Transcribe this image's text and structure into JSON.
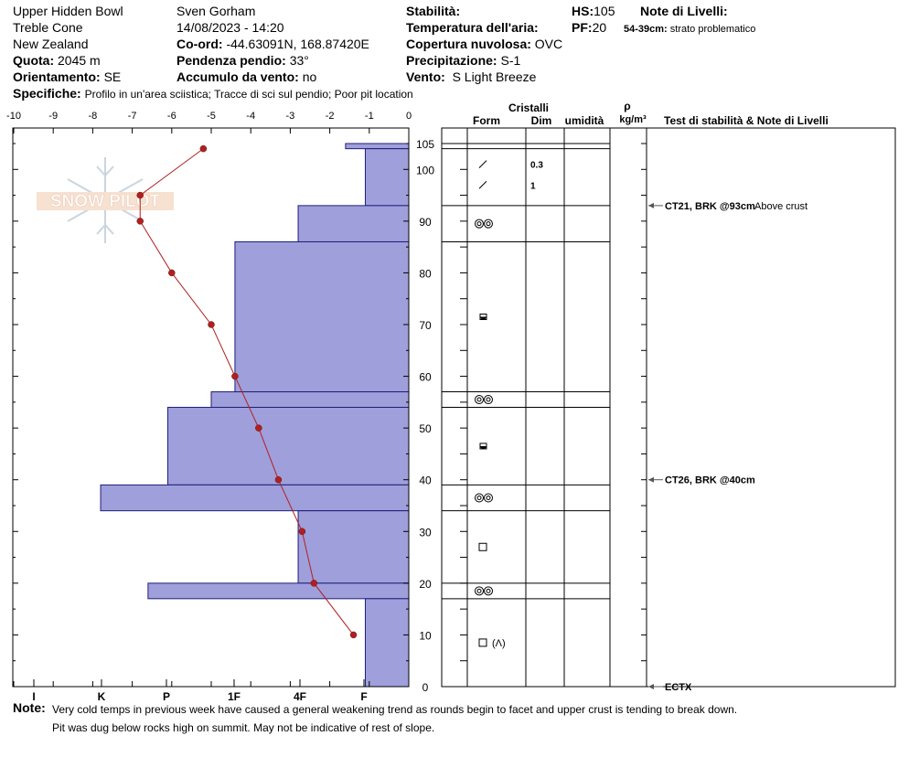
{
  "header": {
    "location": "Upper Hidden Bowl",
    "area": "Treble Cone",
    "country": "New Zealand",
    "elevation_label": "Quota:",
    "elevation": "2045 m",
    "aspect_label": "Orientamento:",
    "aspect": "SE",
    "observer": "Sven Gorham",
    "datetime": "14/08/2023 - 14:20",
    "coord_label": "Co-ord:",
    "coord": "-44.63091N, 168.87420E",
    "slope_label": "Pendenza pendio:",
    "slope": "33°",
    "wind_loading_label": "Accumulo da vento:",
    "wind_loading": "no",
    "stability_label": "Stabilità:",
    "air_temp_label": "Temperatura dell'aria:",
    "sky_label": "Copertura nuvolosa:",
    "sky": "OVC",
    "precip_label": "Precipitazione:",
    "precip": "S-1",
    "wind_label": "Vento:",
    "wind": "S Light Breeze",
    "hs_label": "HS:",
    "hs": "105",
    "pf_label": "PF:",
    "pf": "20",
    "layer_notes_label": "Note di Livelli:",
    "layer_note_range": "54-39cm:",
    "layer_note_text": "strato problematico",
    "specifics_label": "Specifiche:",
    "specifics": "Profilo in un'area sciistica; Tracce di sci sul pendio; Poor pit location"
  },
  "logo_text": "SNOW PILOT",
  "columns": {
    "crystals": "Cristalli",
    "form": "Form",
    "size": "Dim",
    "moisture": "umidità",
    "density_symbol": "ρ",
    "density_unit": "kg/m³",
    "tests": "Test di stabilità & Note di Livelli"
  },
  "chart_data": {
    "type": "snow_profile",
    "temp_axis": {
      "ticks": [
        "-10",
        "-9",
        "-8",
        "-7",
        "-6",
        "-5",
        "-4",
        "-3",
        "-2",
        "-1",
        "0"
      ],
      "range": [
        -10,
        0
      ]
    },
    "height_axis": {
      "ticks": [
        "105",
        "100",
        "90",
        "80",
        "70",
        "60",
        "50",
        "40",
        "30",
        "20",
        "10",
        "0"
      ],
      "range": [
        0,
        105
      ]
    },
    "hardness_axis": {
      "ticks": [
        "I",
        "K",
        "P",
        "1F",
        "4F",
        "F"
      ]
    },
    "temperature_profile": [
      {
        "h": 104,
        "t": -5.2
      },
      {
        "h": 95,
        "t": -6.8
      },
      {
        "h": 90,
        "t": -6.8
      },
      {
        "h": 80,
        "t": -6.0
      },
      {
        "h": 70,
        "t": -5.0
      },
      {
        "h": 60,
        "t": -4.4
      },
      {
        "h": 50,
        "t": -3.8
      },
      {
        "h": 40,
        "t": -3.3
      },
      {
        "h": 30,
        "t": -2.7
      },
      {
        "h": 20,
        "t": -2.4
      },
      {
        "h": 10,
        "t": -1.4
      }
    ],
    "hardness_layers": [
      {
        "top": 105,
        "bottom": 104,
        "hardness_temp_units": -1.6
      },
      {
        "top": 104,
        "bottom": 93,
        "hardness_temp_units": -1.1
      },
      {
        "top": 93,
        "bottom": 86,
        "hardness_temp_units": -2.8
      },
      {
        "top": 86,
        "bottom": 57,
        "hardness_temp_units": -4.4
      },
      {
        "top": 57,
        "bottom": 54,
        "hardness_temp_units": -5.0
      },
      {
        "top": 54,
        "bottom": 39,
        "hardness_temp_units": -6.1
      },
      {
        "top": 39,
        "bottom": 34,
        "hardness_temp_units": -7.8
      },
      {
        "top": 34,
        "bottom": 20,
        "hardness_temp_units": -2.8
      },
      {
        "top": 20,
        "bottom": 17,
        "hardness_temp_units": -6.6
      },
      {
        "top": 17,
        "bottom": 0,
        "hardness_temp_units": -1.1
      }
    ],
    "layer_boundaries": [
      105,
      104,
      93,
      86,
      57,
      54,
      39,
      34,
      20,
      17,
      0
    ],
    "crystals": [
      {
        "h": 101,
        "form": "slash",
        "size": "0.3"
      },
      {
        "h": 97,
        "form": "slash",
        "size": "1"
      },
      {
        "h": 89.5,
        "form": "rounded",
        "size": ""
      },
      {
        "h": 71.5,
        "form": "faceted-rounded",
        "size": ""
      },
      {
        "h": 55.5,
        "form": "rounded",
        "size": ""
      },
      {
        "h": 46.5,
        "form": "faceted-rounded",
        "size": ""
      },
      {
        "h": 36.5,
        "form": "rounded",
        "size": ""
      },
      {
        "h": 27,
        "form": "faceted",
        "size": ""
      },
      {
        "h": 18.5,
        "form": "rounded",
        "size": ""
      },
      {
        "h": 8.5,
        "form": "faceted-depth",
        "size": ""
      }
    ],
    "tests": [
      {
        "h": 93,
        "label": "CT21, BRK @93cm",
        "note": "Above crust"
      },
      {
        "h": 40,
        "label": "CT26, BRK @40cm",
        "note": ""
      },
      {
        "h": 0,
        "label": "ECTX",
        "note": ""
      }
    ]
  },
  "notes": {
    "label": "Note:",
    "line1": "Very cold temps in previous week have caused a general weakening trend as rounds begin to facet and upper crust is tending to break down.",
    "line2": "Pit was dug below rocks high on summit. May not be indicative of rest of slope."
  }
}
